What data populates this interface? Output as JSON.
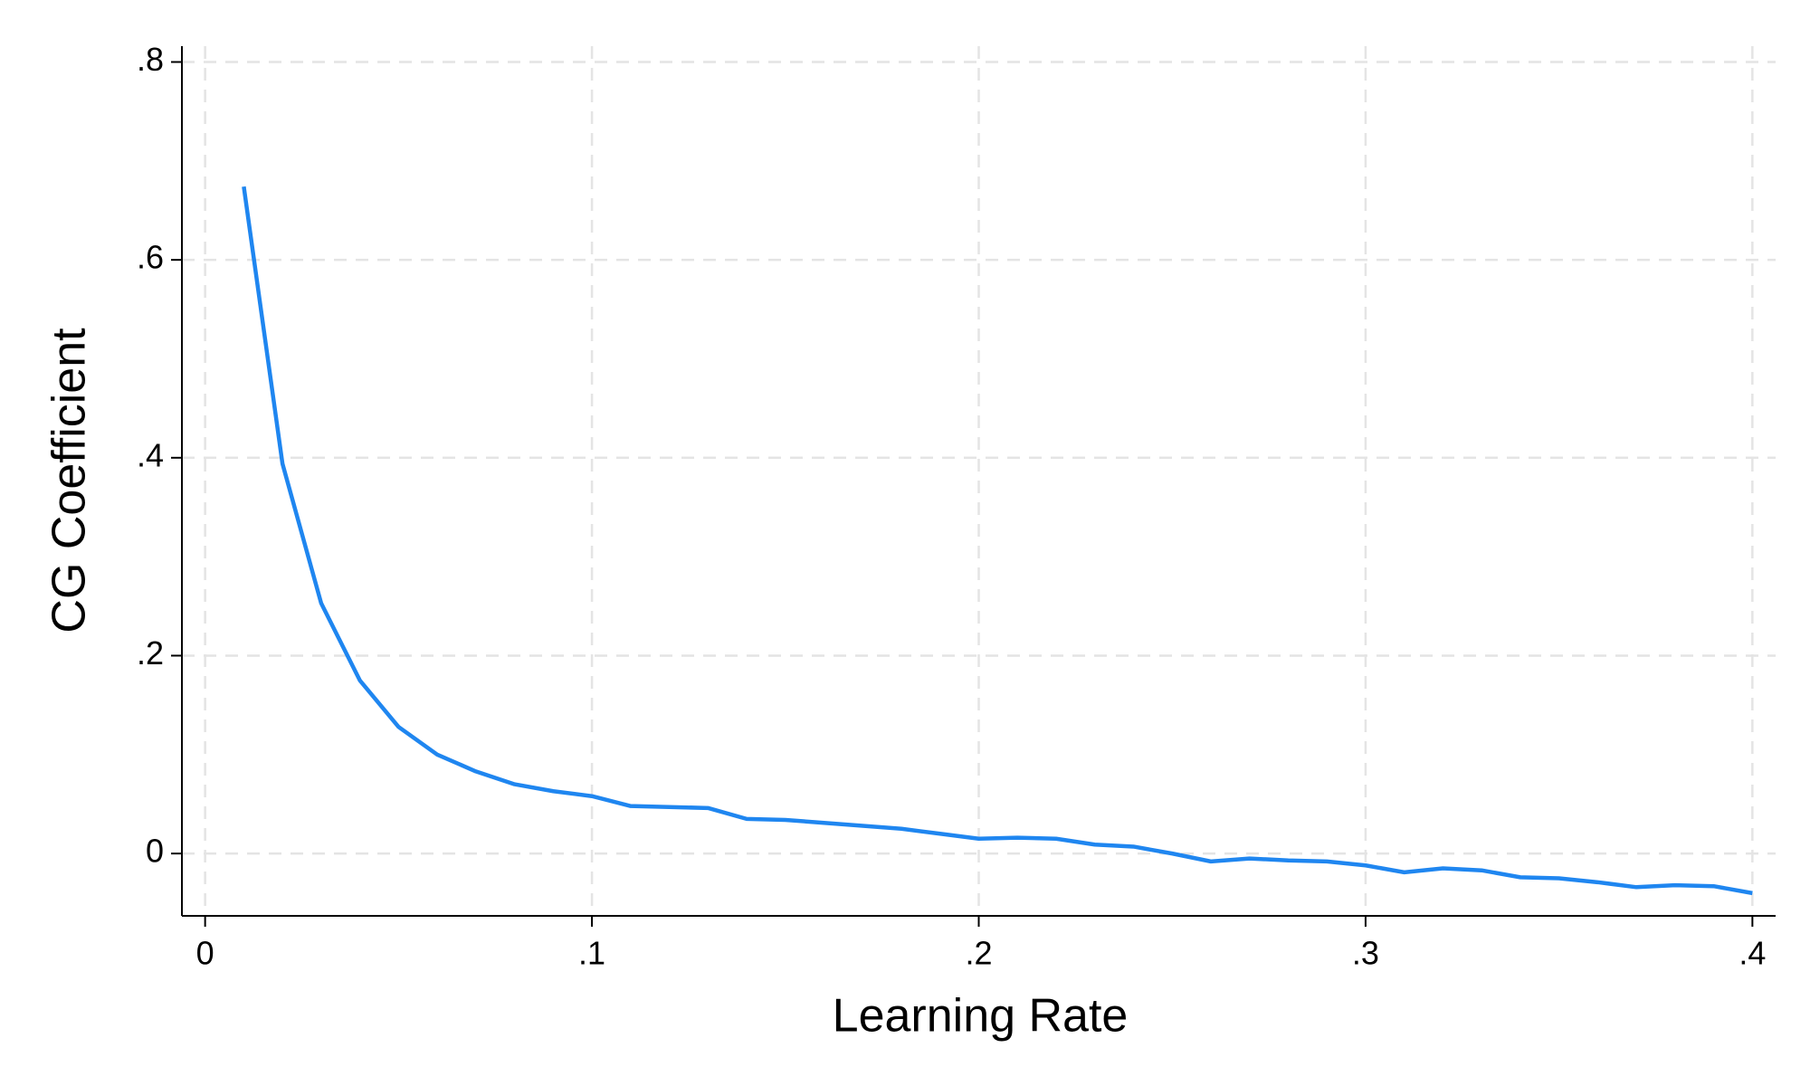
{
  "chart_data": {
    "type": "line",
    "x_label": "Learning Rate",
    "y_label": "CG Coefficient",
    "x": [
      0.01,
      0.02,
      0.03,
      0.04,
      0.05,
      0.06,
      0.07,
      0.08,
      0.09,
      0.1,
      0.11,
      0.12,
      0.13,
      0.14,
      0.15,
      0.16,
      0.17,
      0.18,
      0.19,
      0.2,
      0.21,
      0.22,
      0.23,
      0.24,
      0.25,
      0.26,
      0.27,
      0.28,
      0.29,
      0.3,
      0.31,
      0.32,
      0.33,
      0.34,
      0.35,
      0.36,
      0.37,
      0.38,
      0.39,
      0.4
    ],
    "values": [
      0.674,
      0.394,
      0.253,
      0.175,
      0.128,
      0.1,
      0.083,
      0.07,
      0.063,
      0.058,
      0.048,
      0.047,
      0.046,
      0.035,
      0.034,
      0.031,
      0.028,
      0.025,
      0.02,
      0.015,
      0.016,
      0.015,
      0.009,
      0.007,
      0.0,
      -0.008,
      -0.005,
      -0.007,
      -0.008,
      -0.012,
      -0.019,
      -0.015,
      -0.017,
      -0.024,
      -0.025,
      -0.029,
      -0.034,
      -0.032,
      -0.033,
      -0.04
    ],
    "color": "#1f86f0",
    "xlim": [
      -0.006,
      0.406
    ],
    "ylim": [
      -0.063,
      0.816
    ],
    "xticks": [
      0,
      {
        "value": 0.1,
        "label": ".1"
      },
      {
        "value": 0.2,
        "label": ".2"
      },
      {
        "value": 0.3,
        "label": ".3"
      },
      {
        "value": 0.4,
        "label": ".4"
      }
    ],
    "yticks": [
      0,
      {
        "value": 0.2,
        "label": ".2"
      },
      {
        "value": 0.4,
        "label": ".4"
      },
      {
        "value": 0.6,
        "label": ".6"
      },
      {
        "value": 0.8,
        "label": ".8"
      }
    ],
    "grid": true
  }
}
